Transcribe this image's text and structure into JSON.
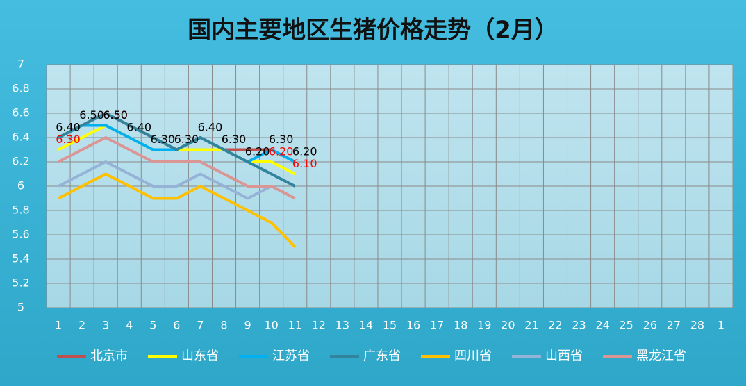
{
  "chart_data": {
    "type": "line",
    "title": "国内主要地区生猪价格走势（2月）",
    "categories": [
      "1",
      "2",
      "3",
      "4",
      "5",
      "6",
      "7",
      "8",
      "9",
      "10",
      "11",
      "12",
      "13",
      "14",
      "15",
      "16",
      "17",
      "18",
      "19",
      "20",
      "21",
      "22",
      "23",
      "24",
      "25",
      "26",
      "27",
      "28",
      "1"
    ],
    "ylim": [
      5,
      7
    ],
    "yticks": [
      5,
      5.2,
      5.4,
      5.6,
      5.8,
      6,
      6.2,
      6.4,
      6.6,
      6.8,
      7
    ],
    "grid": true,
    "legend": "bottom",
    "series": [
      {
        "name": "北京市",
        "color": "#c0504d",
        "values": [
          6.4,
          6.5,
          6.6,
          6.5,
          6.4,
          6.3,
          6.4,
          6.3,
          6.3,
          6.3,
          6.2,
          null,
          null,
          null,
          null,
          null,
          null,
          null,
          null,
          null,
          null,
          null,
          null,
          null,
          null,
          null,
          null,
          null,
          null
        ]
      },
      {
        "name": "山东省",
        "color": "#ffff00",
        "label_color": "#ff0000",
        "values": [
          6.3,
          6.4,
          6.5,
          6.4,
          6.3,
          6.3,
          6.3,
          6.3,
          6.2,
          6.2,
          6.1,
          null,
          null,
          null,
          null,
          null,
          null,
          null,
          null,
          null,
          null,
          null,
          null,
          null,
          null,
          null,
          null,
          null,
          null
        ],
        "value_labels": [
          "6.30",
          null,
          "6.50",
          null,
          null,
          null,
          null,
          null,
          null,
          "6.20",
          "6.10",
          null,
          null,
          null,
          null,
          null,
          null,
          null,
          null,
          null,
          null,
          null,
          null,
          null,
          null,
          null,
          null,
          null,
          null
        ]
      },
      {
        "name": "江苏省",
        "color": "#00b0f0",
        "label_color": "#000000",
        "values": [
          6.4,
          6.5,
          6.5,
          6.4,
          6.3,
          6.3,
          6.4,
          6.3,
          6.2,
          6.3,
          6.2,
          null,
          null,
          null,
          null,
          null,
          null,
          null,
          null,
          null,
          null,
          null,
          null,
          null,
          null,
          null,
          null,
          null,
          null
        ],
        "value_labels": [
          "6.40",
          "6.50",
          "6.50",
          "6.40",
          "6.30",
          "6.30",
          "6.40",
          "6.30",
          "6.20",
          "6.30",
          "6.20",
          null,
          null,
          null,
          null,
          null,
          null,
          null,
          null,
          null,
          null,
          null,
          null,
          null,
          null,
          null,
          null,
          null,
          null
        ]
      },
      {
        "name": "广东省",
        "color": "#31849b",
        "values": [
          6.4,
          6.5,
          6.6,
          6.5,
          6.4,
          6.3,
          6.4,
          6.3,
          6.2,
          6.1,
          6.0,
          null,
          null,
          null,
          null,
          null,
          null,
          null,
          null,
          null,
          null,
          null,
          null,
          null,
          null,
          null,
          null,
          null,
          null
        ]
      },
      {
        "name": "四川省",
        "color": "#ffc000",
        "values": [
          5.9,
          6.0,
          6.1,
          6.0,
          5.9,
          5.9,
          6.0,
          5.9,
          5.8,
          5.7,
          5.5,
          null,
          null,
          null,
          null,
          null,
          null,
          null,
          null,
          null,
          null,
          null,
          null,
          null,
          null,
          null,
          null,
          null,
          null
        ]
      },
      {
        "name": "山西省",
        "color": "#95b3d7",
        "values": [
          6.0,
          6.1,
          6.2,
          6.1,
          6.0,
          6.0,
          6.1,
          6.0,
          5.9,
          6.0,
          5.9,
          null,
          null,
          null,
          null,
          null,
          null,
          null,
          null,
          null,
          null,
          null,
          null,
          null,
          null,
          null,
          null,
          null,
          null
        ]
      },
      {
        "name": "黑龙江省",
        "color": "#d99694",
        "values": [
          6.2,
          6.3,
          6.4,
          6.3,
          6.2,
          6.2,
          6.2,
          6.1,
          6.0,
          6.0,
          5.9,
          null,
          null,
          null,
          null,
          null,
          null,
          null,
          null,
          null,
          null,
          null,
          null,
          null,
          null,
          null,
          null,
          null,
          null
        ]
      }
    ]
  }
}
